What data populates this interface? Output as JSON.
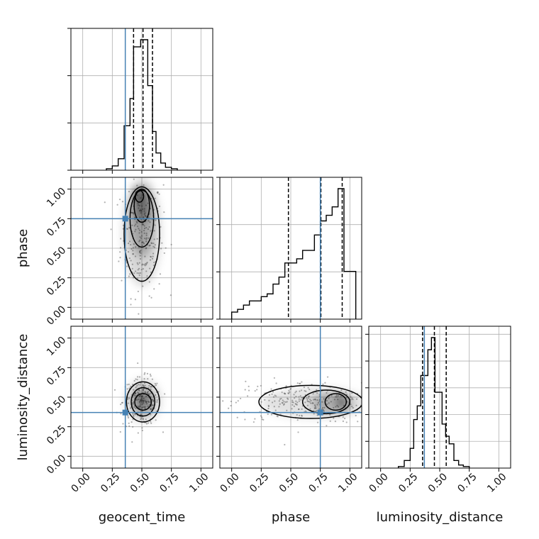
{
  "chart_data": {
    "type": "corner",
    "parameters": [
      "geocent_time",
      "phase",
      "luminosity_distance"
    ],
    "tick_values": [
      0.0,
      0.25,
      0.5,
      0.75,
      1.0
    ],
    "tick_labels": [
      "0.00",
      "0.25",
      "0.50",
      "0.75",
      "1.00"
    ],
    "axis_range": [
      -0.1,
      1.1
    ],
    "grid": true,
    "truth_color": "#4682b4",
    "hist_color": "#000000",
    "truths": {
      "geocent_time": 0.36,
      "phase": 0.75,
      "luminosity_distance": 0.37
    },
    "quantiles": {
      "geocent_time": [
        0.43,
        0.51,
        0.59
      ],
      "phase": [
        0.48,
        0.755,
        0.935
      ],
      "luminosity_distance": [
        0.355,
        0.455,
        0.555
      ]
    },
    "histograms": {
      "geocent_time": {
        "edges": [
          0.2,
          0.25,
          0.3,
          0.35,
          0.4,
          0.43,
          0.46,
          0.49,
          0.52,
          0.55,
          0.59,
          0.62,
          0.66,
          0.7,
          0.75,
          0.8
        ],
        "counts": [
          0.01,
          0.03,
          0.08,
          0.31,
          0.5,
          0.86,
          0.86,
          0.91,
          0.91,
          0.59,
          0.27,
          0.12,
          0.05,
          0.02,
          0.01
        ]
      },
      "phase": {
        "edges": [
          0.0,
          0.05,
          0.1,
          0.15,
          0.2,
          0.25,
          0.3,
          0.35,
          0.4,
          0.45,
          0.5,
          0.55,
          0.6,
          0.65,
          0.7,
          0.75,
          0.8,
          0.85,
          0.9,
          0.95,
          1.0,
          1.05
        ],
        "counts": [
          0.05,
          0.07,
          0.1,
          0.13,
          0.13,
          0.16,
          0.18,
          0.25,
          0.3,
          0.4,
          0.4,
          0.43,
          0.49,
          0.49,
          0.6,
          0.7,
          0.74,
          0.8,
          0.93,
          0.34,
          0.34
        ]
      },
      "luminosity_distance": {
        "edges": [
          0.15,
          0.2,
          0.25,
          0.28,
          0.31,
          0.34,
          0.37,
          0.4,
          0.43,
          0.46,
          0.49,
          0.52,
          0.55,
          0.58,
          0.62,
          0.66,
          0.7,
          0.75
        ],
        "counts": [
          0.01,
          0.05,
          0.13,
          0.32,
          0.41,
          0.61,
          0.61,
          0.78,
          0.86,
          0.5,
          0.5,
          0.29,
          0.21,
          0.16,
          0.05,
          0.02,
          0.01
        ]
      }
    },
    "panels_2d": [
      {
        "x": "geocent_time",
        "y": "phase",
        "blobs": [
          {
            "cx": 0.5,
            "cy": 0.64,
            "rx": 0.16,
            "ry": 0.46,
            "o": 0.35
          },
          {
            "cx": 0.5,
            "cy": 0.72,
            "rx": 0.1,
            "ry": 0.3,
            "o": 0.55
          },
          {
            "cx": 0.5,
            "cy": 0.86,
            "rx": 0.07,
            "ry": 0.14,
            "o": 0.75
          },
          {
            "cx": 0.47,
            "cy": 0.95,
            "rx": 0.035,
            "ry": 0.05,
            "o": 1.0
          }
        ],
        "contours": [
          {
            "cx": 0.5,
            "cy": 0.62,
            "rx": 0.15,
            "ry": 0.4
          },
          {
            "cx": 0.5,
            "cy": 0.75,
            "rx": 0.1,
            "ry": 0.24
          },
          {
            "cx": 0.5,
            "cy": 0.86,
            "rx": 0.065,
            "ry": 0.14
          },
          {
            "cx": 0.48,
            "cy": 0.94,
            "rx": 0.035,
            "ry": 0.05
          }
        ],
        "scatter": {
          "cx": 0.5,
          "cy": 0.6,
          "sx": 0.09,
          "sy": 0.25,
          "n": 260
        }
      },
      {
        "x": "geocent_time",
        "y": "luminosity_distance",
        "blobs": [
          {
            "cx": 0.51,
            "cy": 0.47,
            "rx": 0.15,
            "ry": 0.18,
            "o": 0.35
          },
          {
            "cx": 0.51,
            "cy": 0.47,
            "rx": 0.09,
            "ry": 0.11,
            "o": 0.6
          },
          {
            "cx": 0.51,
            "cy": 0.47,
            "rx": 0.05,
            "ry": 0.04,
            "o": 1.0
          }
        ],
        "contours": [
          {
            "cx": 0.51,
            "cy": 0.46,
            "rx": 0.14,
            "ry": 0.17
          },
          {
            "cx": 0.51,
            "cy": 0.46,
            "rx": 0.1,
            "ry": 0.12
          },
          {
            "cx": 0.51,
            "cy": 0.46,
            "rx": 0.07,
            "ry": 0.07
          }
        ],
        "scatter": {
          "cx": 0.5,
          "cy": 0.46,
          "sx": 0.08,
          "sy": 0.1,
          "n": 260
        }
      },
      {
        "x": "phase",
        "y": "luminosity_distance",
        "blobs": [
          {
            "cx": 0.7,
            "cy": 0.45,
            "rx": 0.45,
            "ry": 0.13,
            "o": 0.25
          },
          {
            "cx": 0.85,
            "cy": 0.45,
            "rx": 0.18,
            "ry": 0.09,
            "o": 0.55
          },
          {
            "cx": 0.93,
            "cy": 0.46,
            "rx": 0.04,
            "ry": 0.05,
            "o": 1.0
          }
        ],
        "contours": [
          {
            "cx": 0.67,
            "cy": 0.46,
            "rx": 0.44,
            "ry": 0.14
          },
          {
            "cx": 0.8,
            "cy": 0.46,
            "rx": 0.2,
            "ry": 0.1
          },
          {
            "cx": 0.88,
            "cy": 0.46,
            "rx": 0.09,
            "ry": 0.07
          }
        ],
        "scatter": {
          "cx": 0.62,
          "cy": 0.46,
          "sx": 0.3,
          "sy": 0.09,
          "n": 300
        }
      }
    ]
  }
}
